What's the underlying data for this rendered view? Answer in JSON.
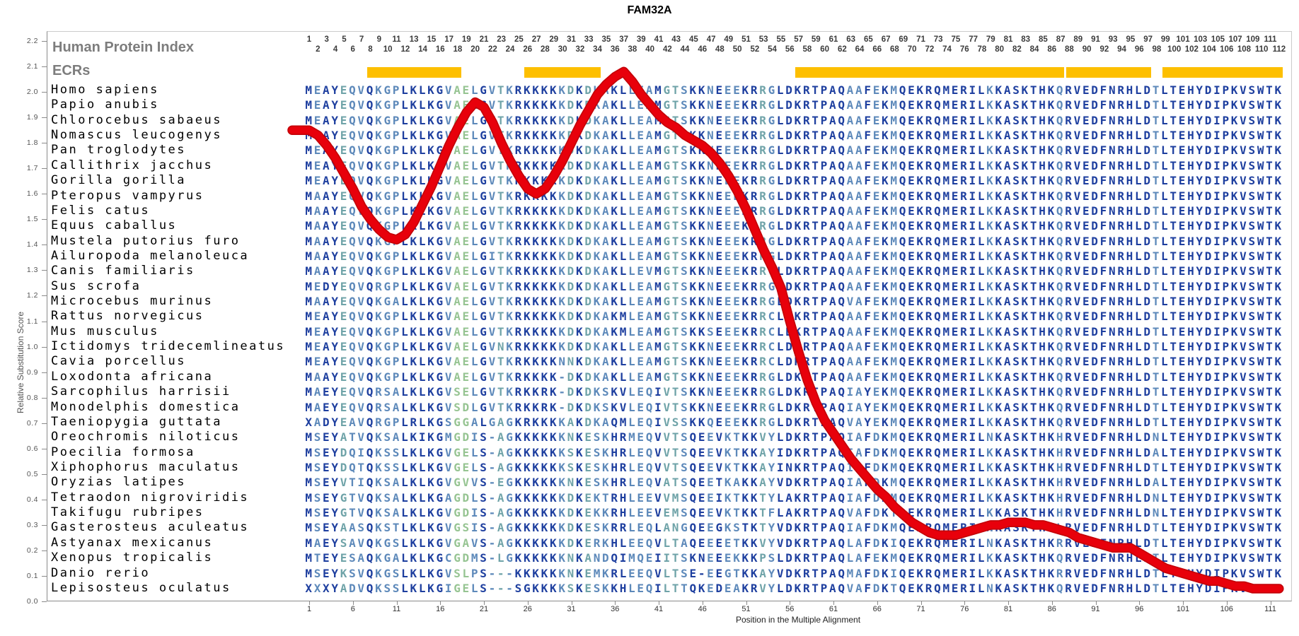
{
  "title": "FAM32A",
  "header": {
    "hpi_label": "Human Protein Index",
    "ecrs_label": "ECRs"
  },
  "hpi_numbers": {
    "odd": [
      1,
      3,
      5,
      7,
      9,
      11,
      13,
      15,
      17,
      19,
      21,
      23,
      25,
      27,
      29,
      31,
      33,
      35,
      37,
      39,
      41,
      43,
      45,
      47,
      49,
      51,
      53,
      55,
      57,
      59,
      61,
      63,
      65,
      67,
      69,
      71,
      73,
      75,
      77,
      79,
      81,
      83,
      85,
      87,
      89,
      91,
      93,
      95,
      97,
      99,
      101,
      103,
      105,
      107,
      109,
      111
    ],
    "even": [
      2,
      4,
      6,
      8,
      10,
      12,
      14,
      16,
      18,
      20,
      22,
      24,
      26,
      28,
      30,
      32,
      34,
      36,
      38,
      40,
      42,
      44,
      46,
      48,
      50,
      52,
      54,
      56,
      58,
      60,
      62,
      64,
      66,
      68,
      70,
      72,
      74,
      76,
      78,
      80,
      82,
      84,
      86,
      88,
      90,
      92,
      94,
      96,
      98,
      100,
      102,
      104,
      106,
      108,
      110,
      112
    ]
  },
  "ecr_regions": [
    [
      8,
      18
    ],
    [
      26,
      34
    ],
    [
      57,
      87
    ],
    [
      88,
      97
    ],
    [
      99,
      112
    ]
  ],
  "axes": {
    "y_label": "Relative Substitution Score",
    "x_label": "Position in the Multiple Alignment",
    "y_ticks": [
      "2.2",
      "2.1",
      "2.0",
      "1.9",
      "1.8",
      "1.7",
      "1.6",
      "1.5",
      "1.4",
      "1.3",
      "1.2",
      "1.1",
      "1.0",
      "0.9",
      "0.8",
      "0.7",
      "0.6",
      "0.5",
      "0.4",
      "0.3",
      "0.2",
      "0.1",
      "0.0"
    ],
    "x_ticks": [
      1,
      6,
      11,
      16,
      21,
      26,
      31,
      36,
      41,
      46,
      51,
      56,
      61,
      66,
      71,
      76,
      81,
      86,
      91,
      96,
      101,
      106,
      111
    ]
  },
  "alignment": {
    "palette": {
      "n": "#1e3f9f",
      "s": "#5d89ba",
      "t": "#6fa3a8",
      "g": "#96c492"
    },
    "column_color_classes": "nsnntssnsssnnnnnsggsnstsnnnnnstntssnnsssnttsnnsnssnntsnnnnnnnnssnsnsnnnnnnnnnnsnnnnnnnsnnnnnnnnnnsnnnnnnnnnnnnnn",
    "species": [
      {
        "name": "Homo sapiens",
        "seq": "MEAYEQVQKGPLKLKGVAELGVTKRKKKKKDKDKAKLLEAMGTSKKNEEEKRRGLDKRTPAQAAFEKMQEKRQMERILKKASKTHKQRVEDFNRHLDTLTEHYDIPKVSWTK"
      },
      {
        "name": "Papio anubis",
        "seq": "MEAYEQVQKGPLKLKGVAELGVTKRKKKKKDKDKAKLLEAMGTSKKNEEEKRRGLDKRTPAQAAFEKMQEKRQMERILKKASKTHKQRVEDFNRHLDTLTEHYDIPKVSWTK"
      },
      {
        "name": "Chlorocebus sabaeus",
        "seq": "MEAYEQVQKGPLKLKGVAELGVTKRKKKKKDKDKAKLLEAMGTSKKNEEEKRRGLDKRTPAQAAFEKMQEKRQMERILKKASKTHKQRVEDFNRHLDTLTEHYDIPKVSWTK"
      },
      {
        "name": "Nomascus leucogenys",
        "seq": "MEAYEQVQKGPLKLKGVAELGVTKRKKKKKDKDKAKLLEAMGTSKKNEEEKRRGLDKRTPAQAAFEKMQEKRQMERILKKASKTHKQRVEDFNRHLDTLTEHYDIPKVSWTK"
      },
      {
        "name": "Pan troglodytes",
        "seq": "MEAYEQVQKGPLKLKGVAELGVTKRKKKKKDKDKAKLLEAMGTSKKNEEEKRRGLDKRTPAQAAFEKMQEKRQMERILKKASKTHKQRVEDFNRHLDTLTEHYDIPKVSWTK"
      },
      {
        "name": "Callithrix jacchus",
        "seq": "MEAYEQVQKGPLKLKGVAELGVTKRKKKKKDKDKAKLLEAMGTSKKNEEEKRRGLDKRTPAQAAFEKMQEKRQMERILKKASKTHKQRVEDFNRHLDTLTEHYDIPKVSWTK"
      },
      {
        "name": "Gorilla gorilla",
        "seq": "MEAYEQVQKGPLKLKGVAELGVTKRKKKKKDKDKAKLLEAMGTSKKNEEEKRRGLDKRTPAQAAFEKMQEKRQMERILKKASKTHKQRVEDFNRHLDTLTEHYDIPKVSWTK"
      },
      {
        "name": "Pteropus vampyrus",
        "seq": "MAAYEQVQKGPLKLKGVAELGVTKRKKKKKDKDKAKLLEAMGTSKKNEEEKRRGLDKRTPAQAAFEKMQEKRQMERILKKASKTHKQRVEDFNRHLDTLTEHYDIPKVSWTK"
      },
      {
        "name": "Felis catus",
        "seq": "MAAYEQVQKGPLKLKGVAELGVTKRKKKKKDKDKAKLLEAMGTSKKNEEEKRRGLDKRTPAQAAFEKMQEKRQMERILKKASKTHKQRVEDFNRHLDTLTEHYDIPKVSWTK"
      },
      {
        "name": "Equus caballus",
        "seq": "MAAYEQVQKGPLKLKGVAELGVTKRKKKKKDKDKAKLLEAMGTSKKNEEEKRRGLDKRTPAQAAFEKMQEKRQMERILKKASKTHKQRVEDFNRHLDTLTEHYDIPKVSWTK"
      },
      {
        "name": "Mustela putorius furo",
        "seq": "MAAYEQVQKGPLKLKGVAELGVTKRKKKKKDKDKAKLLEAMGTSKKNEEEKRRGLDKRTPAQAAFEKMQEKRQMERILKKASKTHKQRVEDFNRHLDTLTEHYDIPKVSWTK"
      },
      {
        "name": "Ailuropoda melanoleuca",
        "seq": "MAAYEQVQKGPLKLKGVAELGITKRKKKKKDKDKAKLLEAMGTSKKNEEEKRRGLDKRTPAQAAFEKMQEKRQMERILKKASKTHKQRVEDFNRHLDTLTEHYDIPKVSWTK"
      },
      {
        "name": "Canis familiaris",
        "seq": "MAAYEQVQKGPLKLKGVAELGVTKRKKKKKDKDKAKLLEVMGTSKKNEEEKRRGLDKRTPAQAAFEKMQEKRQMERILKKASKTHKQRVEDFNRHLDTLTEHYDIPKVSWTK"
      },
      {
        "name": "Sus scrofa",
        "seq": "MEDYEQVQRGPLKLKGVAELGVTKRKKKKKDKDKAKLLEAMGTSKKNEEEKRRGLDKRTPAQAAFEKMQEKRQMERILKKASKTHKQRVEDFNRHLDTLTEHYDIPKVSWTK"
      },
      {
        "name": "Microcebus murinus",
        "seq": "MAAYEQVQKGALKLKGVAELGVTKRKKKKKDKDKAKLLEAMGTSKKNEEEKRRGLDKRTPAQVAFEKMQEKRQMERILKKASKTHKQRVEDFNRHLDTLTEHYDIPKVSWTK"
      },
      {
        "name": "Rattus norvegicus",
        "seq": "MEAYEQVQKGPLKLKGVAELGVTKRKKKKKDKDKAKMLEAMGTSKKNEEEKRRCLDKRTPAQAAFEKMQEKRQMERILKKASKTHKQRVEDFNRHLDTLTEHYDIPKVSWTK"
      },
      {
        "name": "Mus musculus",
        "seq": "MEAYEQVQKGPLKLKGVAELGVTKRKKKKKDKDKAKMLEAMGTSKKSEEEKRRCLDKRTPAQAAFEKMQEKRQMERILKKASKTHKQRVEDFNRHLDTLTEHYDIPKVSWTK"
      },
      {
        "name": "Ictidomys tridecemlineatus",
        "seq": "MEAYEQVQKGPLKLKGVAELGVNKRKKKKKDKDKAKLLEAMGTSKKNEEEKRRCLDKRTPAQAAFEKMQEKRQMERILKKASKTHKQRVEDFNRHLDTLTEHYDIPKVSWTK"
      },
      {
        "name": "Cavia porcellus",
        "seq": "MEAYEQVQKGPLKLKGVAELGVTKRKKKKNNKDKAKLLEAMGTSKKNEEEKRRCLDKRTPAQAAFEKMQEKRQMERILKKASKTHKQRVEDFNRHLDTLTEHYDIPKVSWTK"
      },
      {
        "name": "Loxodonta africana",
        "seq": "MAAYEQVQKGPLKLKGVAELGVTKRKKKK-DKDKAKLLEAMGTSKKNEEEKRRGLDKRTPAQAAFEKMQEKRQMERILKKASKTHKQRVEDFNRHLDTLTEHYDIPKVSWTK"
      },
      {
        "name": "Sarcophilus harrisii",
        "seq": "MAEYEQVQRSALKLKGVSELGVTKRKKRK-DKDKSKVLEQIVTSKKNEEEKRRGLDKRTPAQIAYEKMQEKRQMERILKKASKTHKQRVEDFNRHLDTLTEHYDIPKVSWTK"
      },
      {
        "name": "Monodelphis domestica",
        "seq": "MAEYEQVQRSALKLKGVSDLGVTKRKKRK-DKDKSKVLEQIVTSKKNEEEKRRGLDKRTPAQIAYEKMQEKRQMERILKKASKTHKQRVEDFNRHLDTLTEHYDIPKVSWTK"
      },
      {
        "name": "Taeniopygia guttata",
        "seq": "XADYEAVQRGPLRLKGSGGALGAGKRKKKKAKDKAQMLEQIVSSKKQEEEKKRGLDKRTPAQVAYEKMQEKRQMERILKKASKTHKQRVEDFNRHLDTLTEHYDIPKVSWTK"
      },
      {
        "name": "Oreochromis niloticus",
        "seq": "MSEYATVQKSALKIKGMGDIS-AGKKKKKKNKESKHRMEQVVTSQEEVKTKKVYLDKRTPAQIAFDKMQEKRQMERILNKASKTHKHRVEDFNRHLDNLTEHYDIPKVSWTK"
      },
      {
        "name": "Poecilia formosa",
        "seq": "MSEYDQIQKSSLKLKGVGELS-AGKKKKKKSKESKHRLEQVVTSQEEVKTKKAYIDKRTPAQIAFDKMQEKRQMERILKKASKTHKHRVEDFNRHLDALTEHYDIPKVSWTK"
      },
      {
        "name": "Xiphophorus maculatus",
        "seq": "MSEYDQTQKSSLKLKGVGELS-AGKKKKKKSKESKHRLEQVVTSQEEVKTKKAYINKRTPAQIAFDKMQEKRQMERILKKASKTHKHRVEDFNRHLDTLTEHYDIPKVSWTK"
      },
      {
        "name": "Oryzias latipes",
        "seq": "MSEYVTIQKSALKLKGVGVVS-EGKKKKKKNKESKHRLEQVATSQEETKAKKAYVDKRTPAQIAFDKMQEKRQMERILKKASKTHKHRVEDFNRHLDALTEHYDIPKVSWTK"
      },
      {
        "name": "Tetraodon nigroviridis",
        "seq": "MSEYGTVQKSALKLKGAGDLS-AGKKKKKKDKEKTRHLEEVVMSQEEIKTKKTYLAKRTPAQIAFDKMQEKRQMERILKKASKTHKHRVEDFNRHLDNLTEHYDIPKVSWTK"
      },
      {
        "name": "Takifugu rubripes",
        "seq": "MSEYGTVQKSALKLKGVGDIS-AGKKKKKKDKEKKRHLEEVEMSQEEVKTKKTFLAKRTPAQVAFDKTQEKRQMERILKKASKTHKHRVEDFNRHLDNLTEHYDIPKVSWTK"
      },
      {
        "name": "Gasterosteus aculeatus",
        "seq": "MSEYAASQKSTLKLKGVGSIS-AGKKKKKKDKESKRRLEQLANGQEEGKSTKTYVDKRTPAQIAFDKMQEKRQMERILNKASKTHKLRVEDFNRHLDTLTEHYDIPKVSWTK"
      },
      {
        "name": "Astyanax mexicanus",
        "seq": "MAEYSAVQKGSLKLKGVGAVS-AGKKKKKKDKERKHLEEQVLTAQEEEETKKVYVDKRTPAQLAFDKIQEKRQMERILNKASKTHKRRVEEFNRHLDTLTEHYDIPKVSWTK"
      },
      {
        "name": "Xenopus tropicalis",
        "seq": "MTEYESAQKGALKLKGCGDMS-LGKKKKKKNKANDQIMQEIITSKNEEEKKKPSLDKRTPAQLAFEKMQEKRQMERILKKASKTHKQRVEDFNRHLDTLTEHYDIPKVSWTK"
      },
      {
        "name": "Danio rerio",
        "seq": "MSEYKSVQKGSLKLKGVSLPS---KKKKKKNKEMKRLEEQVLTSE-EEGTKKAYVDKRTPAQMAFDKIQEKRQMERILKKASKTHKRRVEDFNRHLDTLTEHYDIPKVSWTK"
      },
      {
        "name": "Lepisosteus oculatus",
        "seq": "XXXYADVQKSSLKLKGIGELS---SGKKKKSKESKKHLEQILTTQKEDEAKRVYLDKRTPAQVAFDKTQEKRQMERILNKASKTHKQRVEDFNRHLDTLTEHYDIPKVSWTK"
      }
    ]
  },
  "chart_data": {
    "type": "line",
    "title": "FAM32A",
    "xlabel": "Position in the Multiple Alignment",
    "ylabel": "Relative Substitution Score",
    "ylim": [
      0,
      2.2
    ],
    "x_range": [
      1,
      112
    ],
    "curve_color": "#e8000b",
    "ecr_bar_color": "#fdbf00",
    "ecr_regions": [
      [
        8,
        18
      ],
      [
        26,
        34
      ],
      [
        57,
        87
      ],
      [
        88,
        97
      ],
      [
        99,
        112
      ]
    ],
    "scores": [
      1.85,
      1.83,
      1.79,
      1.74,
      1.68,
      1.62,
      1.55,
      1.5,
      1.46,
      1.43,
      1.42,
      1.44,
      1.49,
      1.56,
      1.63,
      1.71,
      1.79,
      1.86,
      1.92,
      1.96,
      1.94,
      1.88,
      1.8,
      1.73,
      1.67,
      1.62,
      1.6,
      1.62,
      1.67,
      1.73,
      1.8,
      1.87,
      1.93,
      1.99,
      2.03,
      2.06,
      2.08,
      2.04,
      1.99,
      1.95,
      1.91,
      1.88,
      1.86,
      1.83,
      1.81,
      1.79,
      1.76,
      1.72,
      1.67,
      1.61,
      1.54,
      1.46,
      1.38,
      1.31,
      1.23,
      1.1,
      0.98,
      0.87,
      0.78,
      0.71,
      0.66,
      0.61,
      0.56,
      0.52,
      0.48,
      0.44,
      0.41,
      0.37,
      0.34,
      0.31,
      0.29,
      0.27,
      0.26,
      0.26,
      0.26,
      0.27,
      0.28,
      0.29,
      0.3,
      0.3,
      0.31,
      0.31,
      0.31,
      0.3,
      0.3,
      0.29,
      0.28,
      0.27,
      0.25,
      0.24,
      0.23,
      0.22,
      0.21,
      0.21,
      0.21,
      0.19,
      0.17,
      0.15,
      0.13,
      0.12,
      0.11,
      0.1,
      0.09,
      0.08,
      0.08,
      0.07,
      0.06,
      0.06,
      0.05,
      0.05,
      0.05,
      0.05
    ]
  }
}
